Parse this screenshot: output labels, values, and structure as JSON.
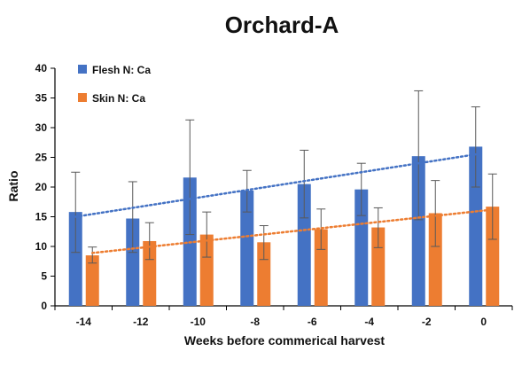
{
  "chart_data": {
    "type": "bar",
    "title": "Orchard-A",
    "xlabel": "Weeks before commerical harvest",
    "ylabel": "Ratio",
    "categories": [
      "-14",
      "-12",
      "-10",
      "-8",
      "-6",
      "-4",
      "-2",
      "0"
    ],
    "ylim": [
      0,
      40
    ],
    "yticks": [
      0,
      5,
      10,
      15,
      20,
      25,
      30,
      35,
      40
    ],
    "grid": false,
    "legend_position": "top-left",
    "series": [
      {
        "name": "Flesh N: Ca",
        "color": "#4472C4",
        "values": [
          15.8,
          14.7,
          21.6,
          19.4,
          20.5,
          19.6,
          25.2,
          26.8
        ],
        "error_low": [
          9.0,
          9.0,
          12.0,
          15.8,
          14.8,
          15.2,
          14.5,
          20.0
        ],
        "error_high": [
          22.5,
          20.9,
          31.3,
          22.8,
          26.2,
          24.0,
          36.2,
          33.5
        ],
        "trendline": {
          "style": "dotted",
          "start": 15.0,
          "end": 25.5
        }
      },
      {
        "name": "Skin N: Ca",
        "color": "#ED7D31",
        "values": [
          8.5,
          10.9,
          12.0,
          10.7,
          12.9,
          13.2,
          15.6,
          16.7
        ],
        "error_low": [
          7.2,
          7.8,
          8.2,
          7.8,
          9.5,
          9.8,
          10.0,
          11.2
        ],
        "error_high": [
          9.9,
          14.0,
          15.8,
          13.5,
          16.3,
          16.5,
          21.1,
          22.2
        ],
        "trendline": {
          "style": "dotted",
          "start": 8.9,
          "end": 16.2
        }
      }
    ]
  }
}
